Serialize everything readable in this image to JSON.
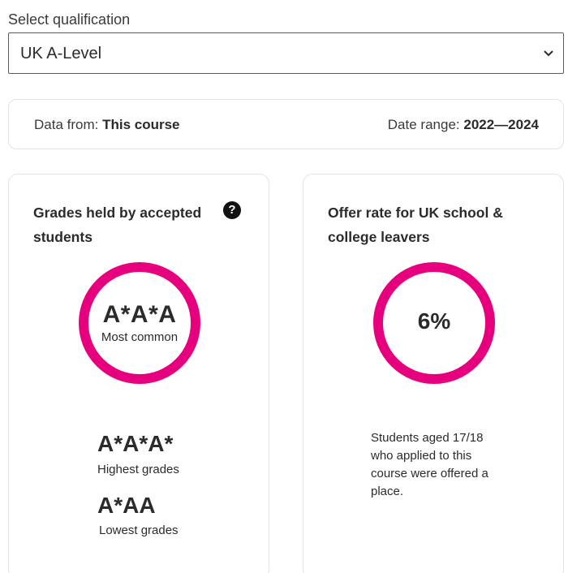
{
  "qualification": {
    "label": "Select qualification",
    "selected": "UK A-Level"
  },
  "info_bar": {
    "data_from_label": "Data from:",
    "data_from_value": "This course",
    "date_range_label": "Date range:",
    "date_range_value": "2022—2024"
  },
  "grades_card": {
    "title": "Grades held by accepted students",
    "help_icon": "question-circle-icon",
    "most_common_grade": "A*A*A",
    "most_common_label": "Most common",
    "highest_grade": "A*A*A*",
    "highest_label": "Highest grades",
    "lowest_grade": "A*AA",
    "lowest_label": "Lowest grades"
  },
  "offer_card": {
    "title": "Offer rate for UK school & college leavers",
    "rate": "6%",
    "description": "Students aged 17/18 who applied to this course were offered a place."
  },
  "colors": {
    "accent": "#e6007e",
    "text": "#2b2b2b",
    "border": "#e3e3e3"
  }
}
